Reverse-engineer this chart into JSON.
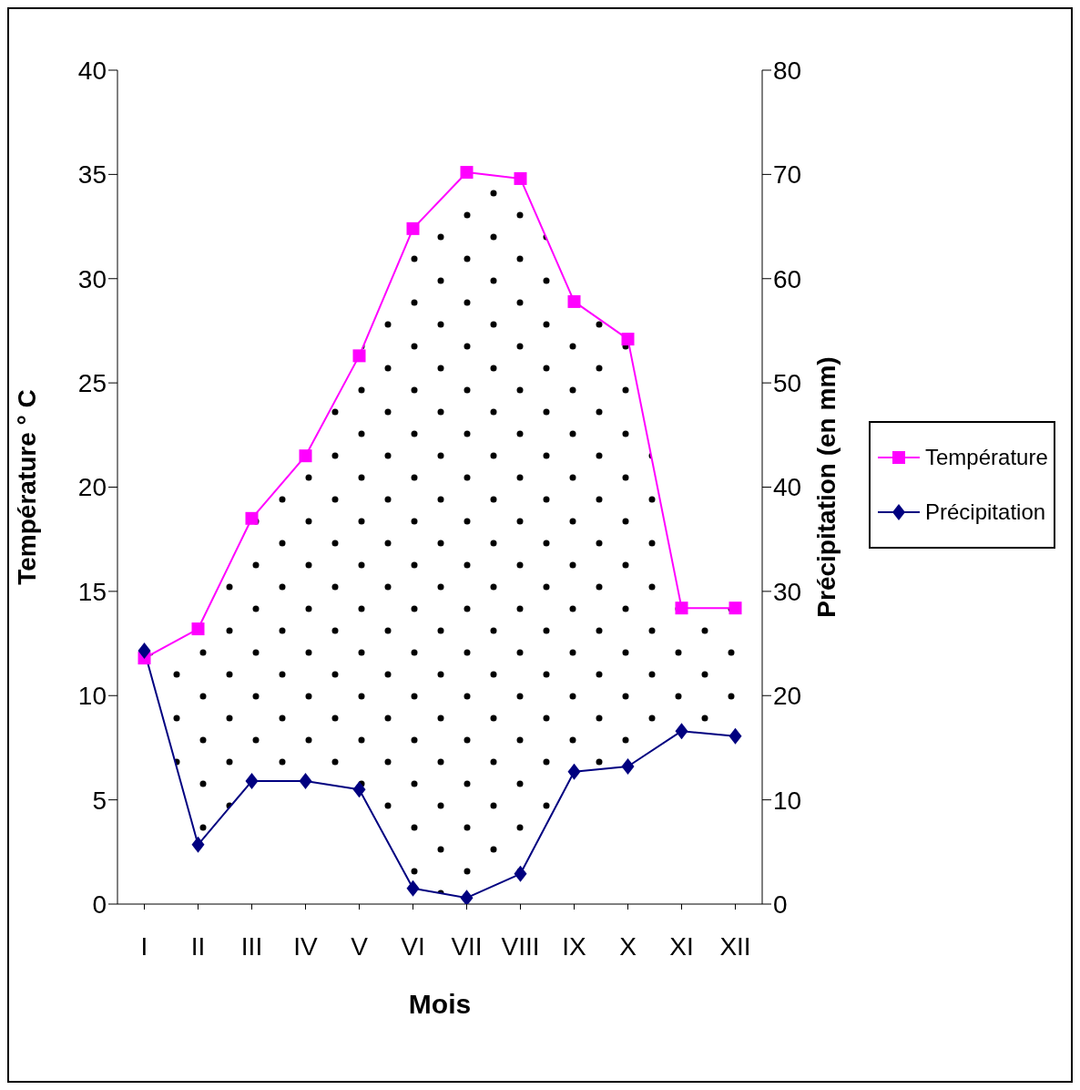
{
  "chart_data": {
    "type": "line",
    "xlabel": "Mois",
    "ylabel": "Température ° C",
    "y2label": "Précipitation (en mm)",
    "categories": [
      "I",
      "II",
      "III",
      "IV",
      "V",
      "VI",
      "VII",
      "VIII",
      "IX",
      "X",
      "XI",
      "XII"
    ],
    "series": [
      {
        "name": "Température",
        "color": "#ff00ff",
        "marker": "square",
        "values": [
          11.8,
          13.2,
          18.5,
          21.5,
          26.3,
          32.4,
          35.1,
          34.8,
          28.9,
          27.1,
          14.2,
          14.2
        ],
        "lower": [
          12.2,
          2.9,
          5.9,
          5.9,
          5.5,
          0.8,
          0.3,
          1.5,
          6.4,
          6.6,
          8.3,
          8.1
        ],
        "upper": [
          11.8,
          13.2,
          18.5,
          21.5,
          26.3,
          32.4,
          35.1,
          34.8,
          28.9,
          27.1,
          14.2,
          14.2
        ]
      },
      {
        "name": "Précipitation",
        "color": "#000080",
        "marker": "diamond",
        "axis": "y2",
        "values": [
          24.3,
          5.7,
          11.8,
          11.8,
          11.0,
          1.5,
          0.6,
          2.9,
          12.7,
          13.2,
          16.6,
          16.1
        ]
      }
    ],
    "ylim": [
      0,
      40
    ],
    "yticks": [
      0,
      5,
      10,
      15,
      20,
      25,
      30,
      35,
      40
    ],
    "y2lim": [
      0,
      80
    ],
    "y2ticks": [
      0,
      10,
      20,
      30,
      40,
      50,
      60,
      70,
      80
    ],
    "grid": false,
    "legend": "right",
    "line_style": "solid"
  }
}
